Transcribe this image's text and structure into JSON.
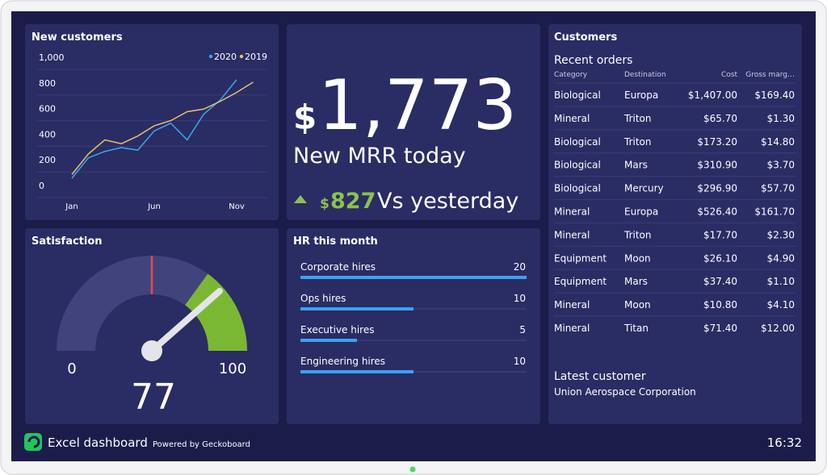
{
  "new_customers": {
    "title": "New customers",
    "chart": {
      "type": "line",
      "categories": [
        "Jan",
        null,
        null,
        null,
        null,
        "Jun",
        null,
        null,
        null,
        null,
        "Nov",
        null
      ],
      "series": [
        {
          "name": "2020",
          "color": "#3aa7f0",
          "values": [
            150,
            310,
            360,
            390,
            370,
            520,
            580,
            450,
            650,
            760,
            920,
            null
          ]
        },
        {
          "name": "2019",
          "color": "#e6c36a",
          "values": [
            180,
            340,
            450,
            420,
            480,
            560,
            600,
            670,
            690,
            750,
            820,
            900
          ]
        }
      ],
      "ylim": [
        0,
        1000
      ],
      "yticks": [
        0,
        200,
        400,
        600,
        800,
        {
          "value": 1000,
          "label": "1,000"
        }
      ],
      "grid": true
    }
  },
  "mrr": {
    "currency": "$",
    "value": "1,773",
    "label": "New MRR today",
    "delta_currency": "$",
    "delta": "827",
    "delta_label": "Vs yesterday"
  },
  "satisfaction": {
    "title": "Satisfaction",
    "chart": {
      "type": "gauge",
      "value": 77,
      "value_label": "77",
      "min": 0,
      "max": 100,
      "threshold": 50,
      "good_from": 70
    }
  },
  "hr": {
    "title": "HR this month",
    "chart": {
      "type": "bar",
      "categories": [
        "Corporate hires",
        "Ops hires",
        "Executive hires",
        "Engineering hires"
      ],
      "values": [
        20,
        10,
        5,
        10
      ],
      "xlim": [
        0,
        20
      ],
      "color": "#3ba3f5"
    }
  },
  "customers": {
    "title": "Customers",
    "orders_title": "Recent orders",
    "table": {
      "columns": [
        "Category",
        "Destination",
        "Cost",
        "Gross marg…"
      ],
      "rows": [
        [
          "Biological",
          "Europa",
          "$1,407.00",
          "$169.40"
        ],
        [
          "Mineral",
          "Triton",
          "$65.70",
          "$1.30"
        ],
        [
          "Biological",
          "Triton",
          "$173.20",
          "$14.80"
        ],
        [
          "Biological",
          "Mars",
          "$310.90",
          "$3.70"
        ],
        [
          "Biological",
          "Mercury",
          "$296.90",
          "$57.70"
        ],
        [
          "Mineral",
          "Europa",
          "$526.40",
          "$161.70"
        ],
        [
          "Mineral",
          "Triton",
          "$17.70",
          "$2.30"
        ],
        [
          "Equipment",
          "Moon",
          "$26.10",
          "$4.90"
        ],
        [
          "Equipment",
          "Mars",
          "$37.40",
          "$1.10"
        ],
        [
          "Mineral",
          "Moon",
          "$10.80",
          "$4.10"
        ],
        [
          "Mineral",
          "Titan",
          "$71.40",
          "$12.00"
        ]
      ]
    },
    "latest_title": "Latest customer",
    "latest": "Union Aerospace Corporation"
  },
  "footer": {
    "title": "Excel dashboard",
    "powered": "Powered by Geckoboard",
    "time": "16:32"
  }
}
